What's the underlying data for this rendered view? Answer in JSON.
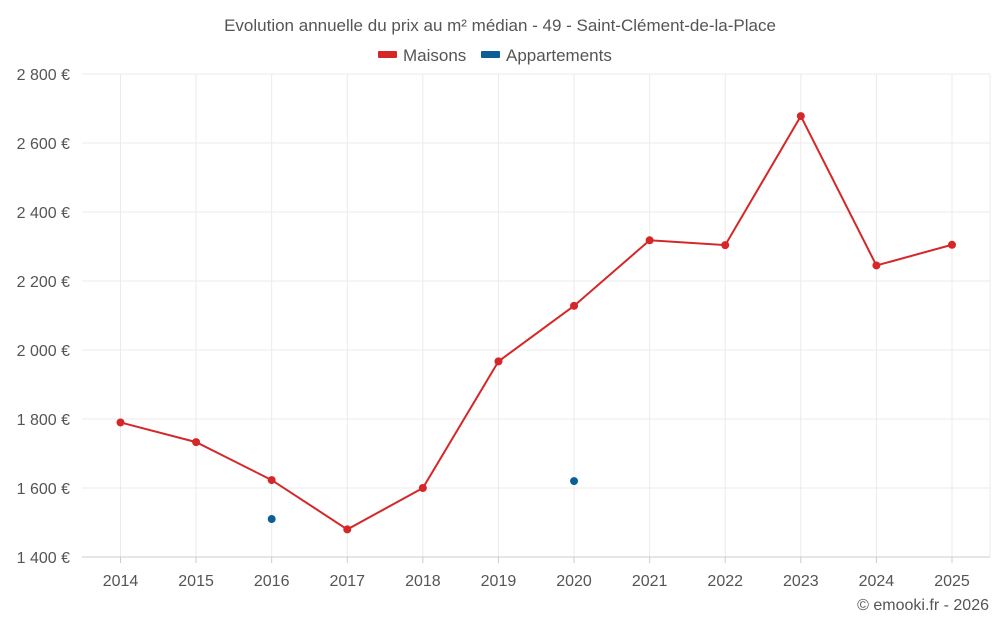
{
  "chart_data": {
    "type": "line",
    "title": "Evolution annuelle du prix au m² médian - 49 - Saint-Clément-de-la-Place",
    "xlabel": "",
    "ylabel": "",
    "categories": [
      "2014",
      "2015",
      "2016",
      "2017",
      "2018",
      "2019",
      "2020",
      "2021",
      "2022",
      "2023",
      "2024",
      "2025"
    ],
    "ylim": [
      1400,
      2800
    ],
    "yticks": [
      1400,
      1600,
      1800,
      2000,
      2200,
      2400,
      2600,
      2800
    ],
    "ytick_labels": [
      "1 400 €",
      "1 600 €",
      "1 800 €",
      "2 000 €",
      "2 200 €",
      "2 400 €",
      "2 600 €",
      "2 800 €"
    ],
    "grid": true,
    "legend_position": "top-center",
    "series": [
      {
        "name": "Maisons",
        "color": "#d62728",
        "values": [
          1790,
          1733,
          1623,
          1480,
          1600,
          1967,
          2128,
          2318,
          2304,
          2678,
          2245,
          2305
        ]
      },
      {
        "name": "Appartements",
        "color": "#0b5e96",
        "values": [
          null,
          null,
          1510,
          null,
          null,
          null,
          1620,
          null,
          null,
          null,
          null,
          null
        ]
      }
    ]
  },
  "credit": "© emooki.fr - 2026"
}
